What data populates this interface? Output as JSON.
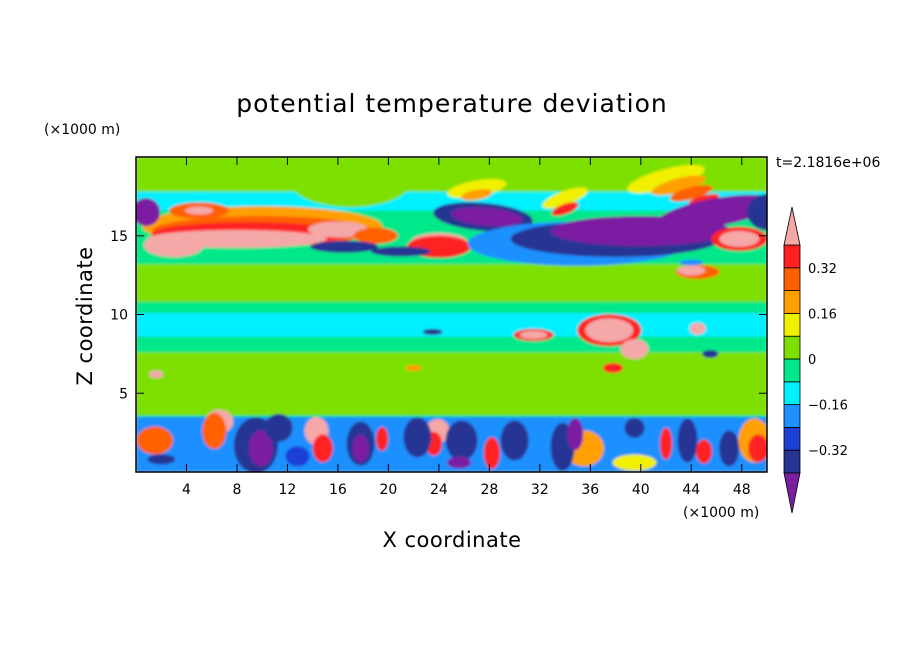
{
  "chart_data": {
    "type": "heatmap",
    "title": "potential temperature deviation",
    "xlabel": "X coordinate",
    "ylabel": "Z coordinate",
    "x_unit": "(×1000 m)",
    "y_unit": "(×1000 m)",
    "time_label": "t=2.1816e+06",
    "xlim": [
      0,
      50
    ],
    "ylim": [
      0,
      20
    ],
    "x_ticks": [
      4,
      8,
      12,
      16,
      20,
      24,
      28,
      32,
      36,
      40,
      44,
      48
    ],
    "x_tick_labels": [
      "4",
      "8",
      "12",
      "16",
      "20",
      "24",
      "28",
      "32",
      "36",
      "40",
      "44",
      "48"
    ],
    "y_ticks": [
      5,
      10,
      15
    ],
    "y_tick_labels": [
      "5",
      "10",
      "15"
    ],
    "colorbar": {
      "levels": [
        -0.4,
        -0.32,
        -0.24,
        -0.16,
        -0.08,
        0,
        0.08,
        0.16,
        0.24,
        0.32,
        0.4
      ],
      "colors": [
        "#7b1fa2",
        "#283593",
        "#1e3fd6",
        "#1e90ff",
        "#00f0ff",
        "#00e88a",
        "#7ee000",
        "#f0f000",
        "#ffa000",
        "#ff6000",
        "#ff2020",
        "#f4a8a8"
      ],
      "labels": [
        {
          "value": 0.32,
          "text": "0.32"
        },
        {
          "value": 0.16,
          "text": "0.16"
        },
        {
          "value": 0,
          "text": "0"
        },
        {
          "value": -0.16,
          "text": "−0.16"
        },
        {
          "value": -0.32,
          "text": "−0.32"
        }
      ]
    },
    "grid": false
  }
}
